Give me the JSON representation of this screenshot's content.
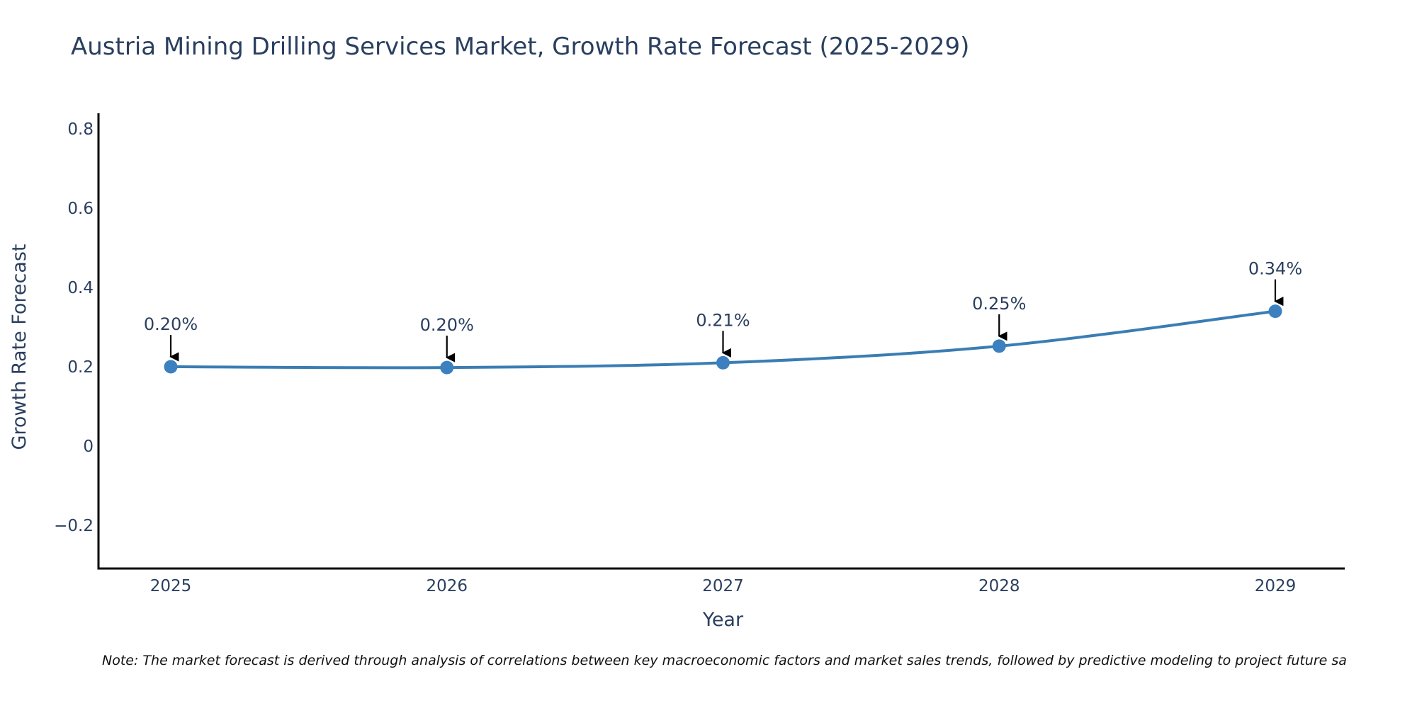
{
  "chart_data": {
    "type": "line",
    "title": "Austria Mining Drilling Services Market, Growth Rate Forecast (2025-2029)",
    "xlabel": "Year",
    "ylabel": "Growth Rate Forecast",
    "categories": [
      "2025",
      "2026",
      "2027",
      "2028",
      "2029"
    ],
    "series": [
      {
        "name": "Growth Rate Forecast",
        "values": [
          0.2,
          0.198,
          0.21,
          0.252,
          0.34
        ],
        "labels": [
          "0.20%",
          "0.20%",
          "0.21%",
          "0.25%",
          "0.34%"
        ],
        "color": "#3a7db3",
        "marker_color": "#3d80c0",
        "line_shape": "spline"
      }
    ],
    "yticks": [
      -0.2,
      0,
      0.2,
      0.4,
      0.6,
      0.8
    ],
    "ytick_labels": [
      "−0.2",
      "0",
      "0.2",
      "0.4",
      "0.6",
      "0.8"
    ],
    "ylim": [
      -0.31,
      0.84
    ],
    "grid": false,
    "legend": "none",
    "annotations": "arrow annotations pointing to each data point with percentage labels",
    "note": "Note: The market forecast is derived through analysis of correlations between key macroeconomic factors and market sales trends, followed by predictive modeling to project future sa"
  }
}
